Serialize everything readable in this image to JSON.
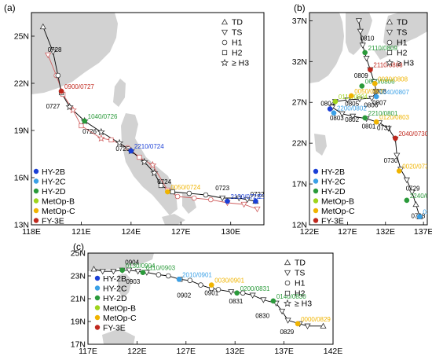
{
  "colors": {
    "HY-2B": "#1a3fd6",
    "HY-2C": "#3aa0e6",
    "HY-2D": "#2a9a3a",
    "MetOp-B": "#9fd41c",
    "MetOp-C": "#f0b400",
    "FY-3E": "#c0281e",
    "best_track": "#000000",
    "sat_track": "#d06060",
    "land": "#d2d2d2"
  },
  "track_legend": [
    {
      "marker": "triangle-up",
      "label": "TD"
    },
    {
      "marker": "triangle-down",
      "label": "TS"
    },
    {
      "marker": "circle",
      "label": "H1"
    },
    {
      "marker": "square",
      "label": "H2"
    },
    {
      "marker": "star",
      "label": "≥ H3"
    }
  ],
  "satellite_legend": [
    "HY-2B",
    "HY-2C",
    "HY-2D",
    "MetOp-B",
    "MetOp-C",
    "FY-3E"
  ],
  "chart_data": [
    {
      "type": "scatter",
      "panel": "(a)",
      "xlim": [
        118,
        132
      ],
      "ylim": [
        13,
        26.5
      ],
      "xticks": [
        118,
        121,
        124,
        127,
        130
      ],
      "xtick_labels": [
        "118E",
        "121E",
        "124E",
        "127E",
        "130E"
      ],
      "yticks": [
        13,
        16,
        19,
        22,
        25
      ],
      "ytick_labels": [
        "13N",
        "16N",
        "19N",
        "22N",
        "25N"
      ],
      "best_track": [
        {
          "lon": 131.5,
          "lat": 14.5,
          "cat": "TD"
        },
        {
          "lon": 131.0,
          "lat": 14.6,
          "cat": "TS"
        },
        {
          "lon": 130.5,
          "lat": 14.7,
          "cat": "TS"
        },
        {
          "lon": 129.5,
          "lat": 14.7,
          "cat": "TS"
        },
        {
          "lon": 128.5,
          "lat": 14.9,
          "cat": "H1"
        },
        {
          "lon": 127.5,
          "lat": 15.0,
          "cat": "H1"
        },
        {
          "lon": 126.5,
          "lat": 15.1,
          "cat": "H2"
        },
        {
          "lon": 125.8,
          "lat": 15.5,
          "cat": "H2"
        },
        {
          "lon": 125.4,
          "lat": 16.3,
          "cat": "H3"
        },
        {
          "lon": 124.8,
          "lat": 17.0,
          "cat": "H3"
        },
        {
          "lon": 124.0,
          "lat": 17.7,
          "cat": "H3"
        },
        {
          "lon": 123.3,
          "lat": 18.2,
          "cat": "H3"
        },
        {
          "lon": 122.2,
          "lat": 18.9,
          "cat": "H3"
        },
        {
          "lon": 121.2,
          "lat": 19.6,
          "cat": "H3"
        },
        {
          "lon": 120.3,
          "lat": 20.5,
          "cat": "H3"
        },
        {
          "lon": 119.8,
          "lat": 21.4,
          "cat": "H2"
        },
        {
          "lon": 119.6,
          "lat": 22.5,
          "cat": "H1"
        },
        {
          "lon": 119.3,
          "lat": 24.0,
          "cat": "TS"
        },
        {
          "lon": 118.7,
          "lat": 25.6,
          "cat": "TD"
        }
      ],
      "sat_track": [
        {
          "lon": 131.6,
          "lat": 14.0,
          "cat": "TS"
        },
        {
          "lon": 130.8,
          "lat": 14.3,
          "cat": "TS"
        },
        {
          "lon": 129.8,
          "lat": 14.4,
          "cat": "TS"
        },
        {
          "lon": 128.8,
          "lat": 14.6,
          "cat": "H1"
        },
        {
          "lon": 127.8,
          "lat": 14.7,
          "cat": "H1"
        },
        {
          "lon": 126.8,
          "lat": 14.8,
          "cat": "H1"
        },
        {
          "lon": 126.2,
          "lat": 15.2,
          "cat": "TS"
        },
        {
          "lon": 125.3,
          "lat": 16.8,
          "cat": "H3"
        },
        {
          "lon": 124.5,
          "lat": 17.3,
          "cat": "H2"
        },
        {
          "lon": 123.8,
          "lat": 17.9,
          "cat": "H1"
        },
        {
          "lon": 122.8,
          "lat": 18.4,
          "cat": "H2"
        },
        {
          "lon": 122.2,
          "lat": 18.5,
          "cat": "H3"
        },
        {
          "lon": 121.0,
          "lat": 19.3,
          "cat": "H2"
        },
        {
          "lon": 120.5,
          "lat": 20.3,
          "cat": "H3"
        },
        {
          "lon": 119.9,
          "lat": 21.3,
          "cat": "H2"
        },
        {
          "lon": 119.5,
          "lat": 22.5,
          "cat": "H1"
        },
        {
          "lon": 119.0,
          "lat": 23.8,
          "cat": "TS"
        }
      ],
      "obs": [
        {
          "lon": 131.5,
          "lat": 14.5,
          "sat": "HY-2B",
          "label": "2100/0721"
        },
        {
          "lon": 129.8,
          "lat": 14.5,
          "sat": "HY-2B",
          "label": "2130/0722"
        },
        {
          "lon": 126.2,
          "lat": 15.1,
          "sat": "MetOp-C",
          "label": "0050/0724"
        },
        {
          "lon": 124.0,
          "lat": 17.7,
          "sat": "HY-2B",
          "label": "2210/0724"
        },
        {
          "lon": 121.2,
          "lat": 19.6,
          "sat": "HY-2D",
          "label": "1040/0726"
        },
        {
          "lon": 119.8,
          "lat": 21.5,
          "sat": "FY-3E",
          "label": "0900/0727"
        }
      ],
      "labels": [
        {
          "lon": 131.6,
          "lat": 14.8,
          "text": "0722"
        },
        {
          "lon": 129.5,
          "lat": 15.2,
          "text": "0723"
        },
        {
          "lon": 126.0,
          "lat": 15.6,
          "text": "0724"
        },
        {
          "lon": 123.5,
          "lat": 17.7,
          "text": "0725"
        },
        {
          "lon": 121.5,
          "lat": 18.8,
          "text": "0726"
        },
        {
          "lon": 119.3,
          "lat": 20.4,
          "text": "0727"
        },
        {
          "lon": 119.4,
          "lat": 24.0,
          "text": "0728"
        }
      ]
    },
    {
      "type": "scatter",
      "panel": "(b)",
      "xlim": [
        122,
        137.5
      ],
      "ylim": [
        12,
        38
      ],
      "xticks": [
        122,
        127,
        132,
        137
      ],
      "xtick_labels": [
        "122E",
        "127E",
        "132E",
        "137E"
      ],
      "yticks": [
        12,
        17,
        22,
        27,
        32,
        37
      ],
      "ytick_labels": [
        "12N",
        "17N",
        "22N",
        "27N",
        "32N",
        "37N"
      ],
      "best_track": [
        {
          "lon": 136.5,
          "lat": 13.0,
          "cat": "TD"
        },
        {
          "lon": 136.0,
          "lat": 14.5,
          "cat": "TD"
        },
        {
          "lon": 135.5,
          "lat": 16.0,
          "cat": "TS"
        },
        {
          "lon": 134.8,
          "lat": 17.5,
          "cat": "TS"
        },
        {
          "lon": 134.0,
          "lat": 18.8,
          "cat": "TS"
        },
        {
          "lon": 133.5,
          "lat": 20.5,
          "cat": "TS"
        },
        {
          "lon": 133.3,
          "lat": 22.5,
          "cat": "TS"
        },
        {
          "lon": 132.4,
          "lat": 23.8,
          "cat": "TS"
        },
        {
          "lon": 131.2,
          "lat": 24.5,
          "cat": "TS"
        },
        {
          "lon": 129.5,
          "lat": 25.0,
          "cat": "TS"
        },
        {
          "lon": 127.7,
          "lat": 25.3,
          "cat": "TS"
        },
        {
          "lon": 126.3,
          "lat": 25.6,
          "cat": "TS"
        },
        {
          "lon": 125.0,
          "lat": 26.4,
          "cat": "TS"
        },
        {
          "lon": 125.4,
          "lat": 27.1,
          "cat": "TS"
        },
        {
          "lon": 127.0,
          "lat": 27.3,
          "cat": "TS"
        },
        {
          "lon": 128.6,
          "lat": 27.4,
          "cat": "TS"
        },
        {
          "lon": 130.2,
          "lat": 27.5,
          "cat": "TS"
        },
        {
          "lon": 130.8,
          "lat": 28.3,
          "cat": "TS"
        },
        {
          "lon": 130.5,
          "lat": 29.5,
          "cat": "TS"
        },
        {
          "lon": 130.0,
          "lat": 31.0,
          "cat": "TS"
        },
        {
          "lon": 129.5,
          "lat": 32.4,
          "cat": "TS"
        },
        {
          "lon": 129.0,
          "lat": 34.0,
          "cat": "TS"
        },
        {
          "lon": 128.7,
          "lat": 35.7,
          "cat": "TS"
        },
        {
          "lon": 128.5,
          "lat": 37.0,
          "cat": "TS"
        }
      ],
      "obs": [
        {
          "lon": 136.5,
          "lat": 13.0,
          "sat": "HY-2C",
          "label": "0300/0728"
        },
        {
          "lon": 134.8,
          "lat": 15.0,
          "sat": "HY-2D",
          "label": "2240/0728"
        },
        {
          "lon": 133.8,
          "lat": 18.6,
          "sat": "MetOp-C",
          "label": "0020/0730"
        },
        {
          "lon": 133.3,
          "lat": 22.6,
          "sat": "FY-3E",
          "label": "2040/0730"
        },
        {
          "lon": 130.8,
          "lat": 24.6,
          "sat": "MetOp-C",
          "label": "0120/0803"
        },
        {
          "lon": 129.3,
          "lat": 25.1,
          "sat": "HY-2D",
          "label": "2210/0801"
        },
        {
          "lon": 125.2,
          "lat": 25.7,
          "sat": "HY-2C",
          "label": "2200/0802"
        },
        {
          "lon": 124.7,
          "lat": 26.2,
          "sat": "HY-2B",
          "label": ""
        },
        {
          "lon": 125.4,
          "lat": 27.1,
          "sat": "MetOp-B",
          "label": "0110/0804"
        },
        {
          "lon": 127.5,
          "lat": 27.8,
          "sat": "MetOp-C",
          "label": "0050/0805"
        },
        {
          "lon": 128.9,
          "lat": 29.0,
          "sat": "HY-2D",
          "label": "0650/0806"
        },
        {
          "lon": 130.8,
          "lat": 27.7,
          "sat": "HY-2C",
          "label": "0040/0807"
        },
        {
          "lon": 130.6,
          "lat": 29.3,
          "sat": "MetOp-C",
          "label": "0030/0808"
        },
        {
          "lon": 130.0,
          "lat": 31.0,
          "sat": "FY-3E",
          "label": "2110/0808"
        },
        {
          "lon": 129.3,
          "lat": 33.1,
          "sat": "HY-2D",
          "label": "2110/0809"
        }
      ],
      "labels": [
        {
          "lon": 136.3,
          "lat": 12.8,
          "text": "0728"
        },
        {
          "lon": 135.6,
          "lat": 16.2,
          "text": "0729"
        },
        {
          "lon": 132.7,
          "lat": 19.6,
          "text": "0730"
        },
        {
          "lon": 131.8,
          "lat": 23.6,
          "text": "0731"
        },
        {
          "lon": 129.8,
          "lat": 23.8,
          "text": "0801"
        },
        {
          "lon": 127.6,
          "lat": 24.6,
          "text": "0802"
        },
        {
          "lon": 125.6,
          "lat": 24.8,
          "text": "0803"
        },
        {
          "lon": 124.4,
          "lat": 26.6,
          "text": "0804"
        },
        {
          "lon": 127.6,
          "lat": 26.6,
          "text": "0805"
        },
        {
          "lon": 130.1,
          "lat": 26.4,
          "text": "0806"
        },
        {
          "lon": 131.2,
          "lat": 26.7,
          "text": "0807"
        },
        {
          "lon": 131.2,
          "lat": 28.1,
          "text": "0808"
        },
        {
          "lon": 128.8,
          "lat": 30.0,
          "text": "0809"
        },
        {
          "lon": 129.6,
          "lat": 34.6,
          "text": "0810"
        }
      ]
    },
    {
      "type": "scatter",
      "panel": "(c)",
      "xlim": [
        117,
        142
      ],
      "ylim": [
        17,
        25
      ],
      "xticks": [
        117,
        122,
        127,
        132,
        137,
        142
      ],
      "xtick_labels": [
        "117E",
        "122E",
        "127E",
        "132E",
        "137E",
        "142E"
      ],
      "yticks": [
        17,
        19,
        21,
        23,
        25
      ],
      "ytick_labels": [
        "17N",
        "19N",
        "21N",
        "23N",
        "25N"
      ],
      "best_track": [
        {
          "lon": 141.0,
          "lat": 18.6,
          "cat": "TD"
        },
        {
          "lon": 139.4,
          "lat": 18.6,
          "cat": "TS"
        },
        {
          "lon": 138.6,
          "lat": 18.8,
          "cat": "TS"
        },
        {
          "lon": 137.4,
          "lat": 19.1,
          "cat": "TS"
        },
        {
          "lon": 136.8,
          "lat": 19.9,
          "cat": "TS"
        },
        {
          "lon": 136.2,
          "lat": 20.6,
          "cat": "TS"
        },
        {
          "lon": 134.9,
          "lat": 20.9,
          "cat": "TS"
        },
        {
          "lon": 133.8,
          "lat": 21.3,
          "cat": "TS"
        },
        {
          "lon": 132.8,
          "lat": 21.5,
          "cat": "H1"
        },
        {
          "lon": 131.6,
          "lat": 21.6,
          "cat": "TS"
        },
        {
          "lon": 130.3,
          "lat": 21.8,
          "cat": "H1"
        },
        {
          "lon": 129.6,
          "lat": 21.9,
          "cat": "H1"
        },
        {
          "lon": 128.5,
          "lat": 22.2,
          "cat": "H1"
        },
        {
          "lon": 127.4,
          "lat": 22.6,
          "cat": "H1"
        },
        {
          "lon": 126.4,
          "lat": 22.7,
          "cat": "H2"
        },
        {
          "lon": 125.2,
          "lat": 23.0,
          "cat": "H1"
        },
        {
          "lon": 124.2,
          "lat": 23.1,
          "cat": "H1"
        },
        {
          "lon": 123.0,
          "lat": 23.3,
          "cat": "TS"
        },
        {
          "lon": 122.1,
          "lat": 23.4,
          "cat": "TS"
        },
        {
          "lon": 121.2,
          "lat": 23.5,
          "cat": "TS"
        },
        {
          "lon": 120.5,
          "lat": 23.5,
          "cat": "TS"
        },
        {
          "lon": 119.6,
          "lat": 23.4,
          "cat": "TS"
        },
        {
          "lon": 118.5,
          "lat": 23.4,
          "cat": "TS"
        },
        {
          "lon": 117.6,
          "lat": 23.6,
          "cat": "TD"
        }
      ],
      "obs": [
        {
          "lon": 120.5,
          "lat": 23.5,
          "sat": "HY-2D",
          "label": "0130/0904"
        },
        {
          "lon": 122.6,
          "lat": 23.3,
          "sat": "HY-2D",
          "label": "0110/0903"
        },
        {
          "lon": 126.3,
          "lat": 22.7,
          "sat": "HY-2C",
          "label": "2010/0901"
        },
        {
          "lon": 129.6,
          "lat": 22.2,
          "sat": "MetOp-C",
          "label": "0030/0901"
        },
        {
          "lon": 132.2,
          "lat": 21.5,
          "sat": "HY-2D",
          "label": "0200/0831"
        },
        {
          "lon": 135.9,
          "lat": 20.8,
          "sat": "HY-2D",
          "label": "0140/0830"
        },
        {
          "lon": 138.4,
          "lat": 18.8,
          "sat": "MetOp-C",
          "label": "0000/0829"
        }
      ],
      "labels": [
        {
          "lon": 121.5,
          "lat": 24.0,
          "text": "0904"
        },
        {
          "lon": 121.6,
          "lat": 22.3,
          "text": "0903"
        },
        {
          "lon": 126.8,
          "lat": 21.1,
          "text": "0902"
        },
        {
          "lon": 129.6,
          "lat": 21.3,
          "text": "0901"
        },
        {
          "lon": 132.1,
          "lat": 20.6,
          "text": "0831"
        },
        {
          "lon": 134.8,
          "lat": 19.3,
          "text": "0830"
        },
        {
          "lon": 137.3,
          "lat": 17.9,
          "text": "0829"
        }
      ]
    }
  ]
}
